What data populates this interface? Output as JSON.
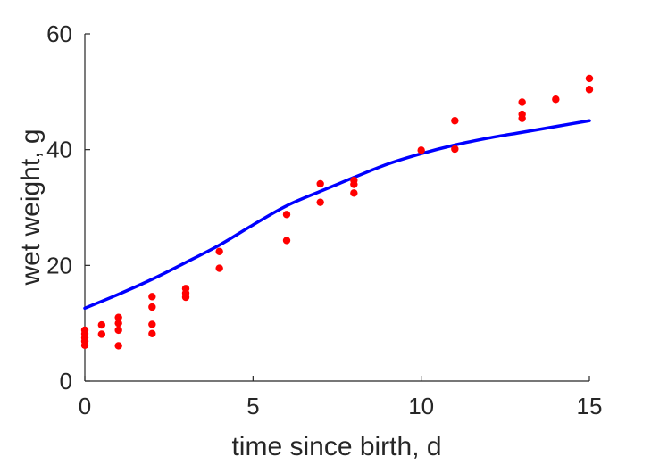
{
  "chart_data": {
    "type": "scatter",
    "title": "",
    "xlabel": "time since birth, d",
    "ylabel": "wet weight, g",
    "xlim": [
      0,
      15
    ],
    "ylim": [
      0,
      60
    ],
    "xticks": [
      0,
      5,
      10,
      15
    ],
    "yticks": [
      0,
      20,
      40,
      60
    ],
    "grid": false,
    "legend": "none",
    "colors": {
      "points": "#ff0000",
      "fit": "#0000ff",
      "axis": "#262626"
    },
    "series": [
      {
        "type": "scatter",
        "points": [
          [
            0,
            6.2
          ],
          [
            0,
            6.9
          ],
          [
            0,
            7.5
          ],
          [
            0,
            8.2
          ],
          [
            0,
            8.8
          ],
          [
            0.5,
            8.1
          ],
          [
            0.5,
            9.7
          ],
          [
            1,
            6.1
          ],
          [
            1,
            8.8
          ],
          [
            1,
            10.0
          ],
          [
            1,
            11.0
          ],
          [
            2,
            8.2
          ],
          [
            2,
            9.8
          ],
          [
            2,
            12.8
          ],
          [
            2,
            14.6
          ],
          [
            3,
            14.5
          ],
          [
            3,
            15.2
          ],
          [
            3,
            16.0
          ],
          [
            4,
            19.5
          ],
          [
            4,
            22.4
          ],
          [
            6,
            24.3
          ],
          [
            6,
            28.8
          ],
          [
            7,
            30.9
          ],
          [
            7,
            34.1
          ],
          [
            8,
            32.5
          ],
          [
            8,
            34.0
          ],
          [
            8,
            34.7
          ],
          [
            10,
            39.9
          ],
          [
            11,
            40.1
          ],
          [
            11,
            45.0
          ],
          [
            13,
            45.4
          ],
          [
            13,
            46.1
          ],
          [
            13,
            48.2
          ],
          [
            14,
            48.7
          ],
          [
            15,
            50.4
          ],
          [
            15,
            52.3
          ]
        ]
      },
      {
        "type": "line",
        "x": [
          0,
          1,
          2,
          3,
          4,
          5,
          6,
          7,
          8,
          9,
          10,
          11,
          12,
          13,
          14,
          15
        ],
        "y": [
          12.6,
          15.0,
          17.6,
          20.5,
          23.5,
          27.0,
          30.3,
          32.8,
          35.2,
          37.5,
          39.3,
          40.8,
          42.0,
          43.0,
          44.0,
          45.0
        ]
      }
    ]
  }
}
